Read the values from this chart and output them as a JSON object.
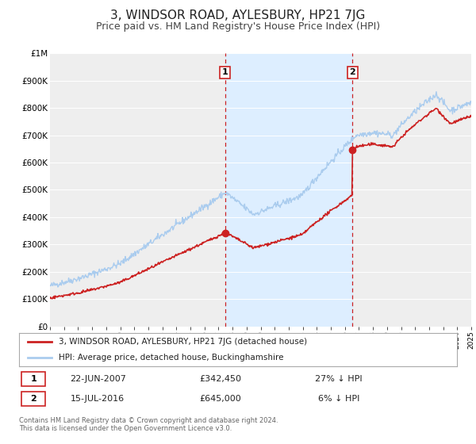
{
  "title": "3, WINDSOR ROAD, AYLESBURY, HP21 7JG",
  "subtitle": "Price paid vs. HM Land Registry's House Price Index (HPI)",
  "title_fontsize": 11,
  "subtitle_fontsize": 9,
  "hpi_color": "#aaccee",
  "price_color": "#cc2222",
  "dot_color": "#cc2222",
  "background_color": "#ffffff",
  "plot_bg_color": "#eeeeee",
  "shaded_region_color": "#ddeeff",
  "ylim": [
    0,
    1000000
  ],
  "yticks": [
    0,
    100000,
    200000,
    300000,
    400000,
    500000,
    600000,
    700000,
    800000,
    900000,
    1000000
  ],
  "year_start": 1995,
  "year_end": 2025,
  "sale1_year": 2007.47,
  "sale1_price": 342450,
  "sale1_label": "1",
  "sale1_date": "22-JUN-2007",
  "sale1_pct": "27% ↓ HPI",
  "sale2_year": 2016.54,
  "sale2_price": 645000,
  "sale2_label": "2",
  "sale2_date": "15-JUL-2016",
  "sale2_pct": "6% ↓ HPI",
  "legend_property": "3, WINDSOR ROAD, AYLESBURY, HP21 7JG (detached house)",
  "legend_hpi": "HPI: Average price, detached house, Buckinghamshire",
  "footer1": "Contains HM Land Registry data © Crown copyright and database right 2024.",
  "footer2": "This data is licensed under the Open Government Licence v3.0."
}
